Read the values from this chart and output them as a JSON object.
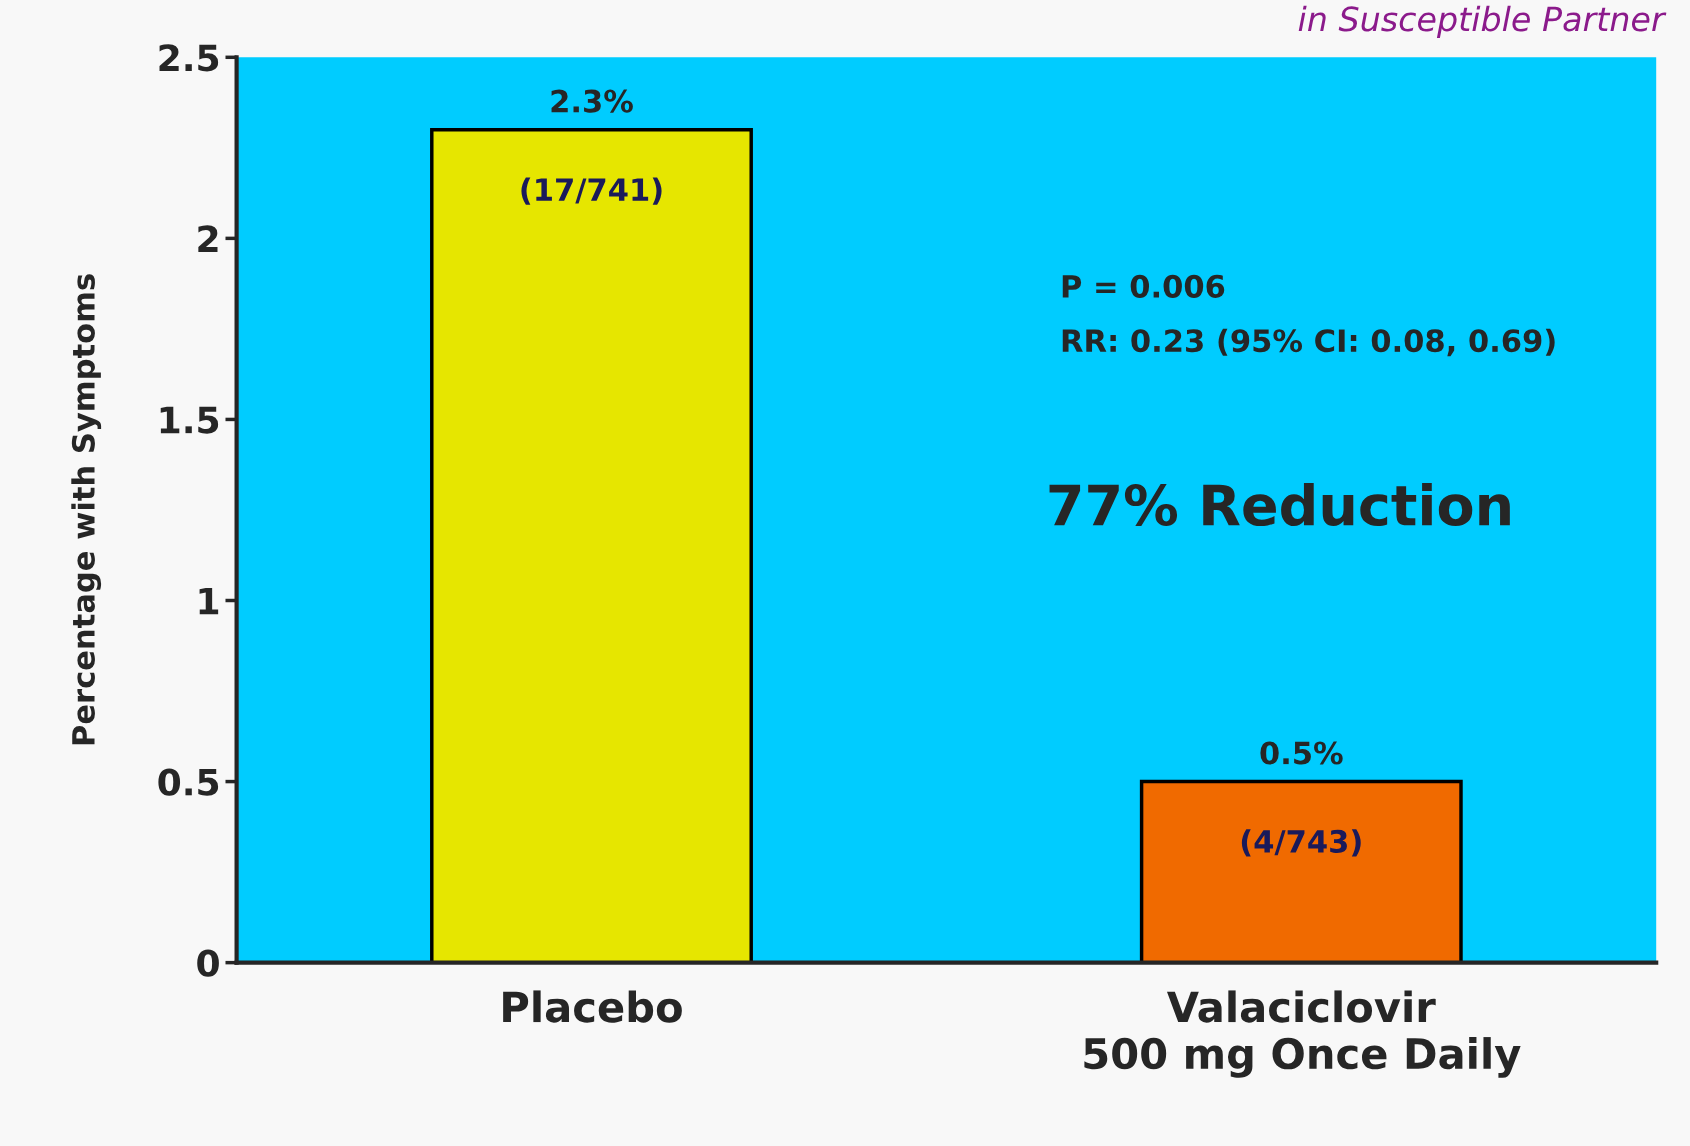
{
  "chart_data": {
    "type": "bar",
    "subtitle": "in Susceptible Partner",
    "ylabel": "Percentage with Symptoms",
    "categories": [
      "Placebo",
      "Valaciclovir\n500 mg Once Daily"
    ],
    "values": [
      2.3,
      0.5
    ],
    "colors": [
      "#e6e600",
      "#f06a00"
    ],
    "value_labels": [
      "2.3%",
      "0.5%"
    ],
    "ylim": [
      0,
      2.5
    ],
    "yticks": [
      0,
      0.5,
      1,
      1.5,
      2,
      2.5
    ],
    "grid": false,
    "legend": false,
    "annotations": [
      "(17/741)",
      "(4/743)",
      "P = 0.006",
      "RR: 0.23 (95% CI: 0.08, 0.69)",
      "77% Reduction"
    ]
  }
}
